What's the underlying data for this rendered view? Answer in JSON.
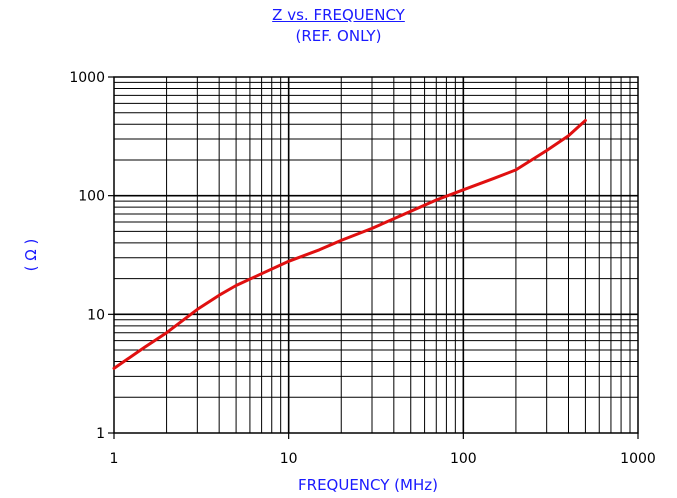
{
  "titles": {
    "line1": "Z vs. FREQUENCY",
    "line2": "(REF. ONLY)"
  },
  "colors": {
    "title": "#1a1aff",
    "grid": "#000000",
    "curve": "#e01010"
  },
  "chart_data": {
    "type": "line",
    "xlabel": "FREQUENCY (MHz)",
    "ylabel": "( Ω )",
    "x_scale": "log",
    "y_scale": "log",
    "xlim": [
      1,
      1000
    ],
    "ylim": [
      1,
      1000
    ],
    "x_ticks": [
      "1",
      "10",
      "100",
      "1000"
    ],
    "y_ticks": [
      "1",
      "10",
      "100",
      "1000"
    ],
    "grid": true,
    "series": [
      {
        "x": [
          1,
          1.5,
          2,
          3,
          4,
          5,
          7,
          10,
          15,
          20,
          30,
          50,
          70,
          100,
          150,
          200,
          300,
          400,
          500
        ],
        "values": [
          3.5,
          5.3,
          7,
          11,
          14.5,
          17.5,
          22,
          28,
          35,
          42,
          53,
          74,
          92,
          112,
          140,
          165,
          240,
          320,
          430
        ]
      }
    ]
  }
}
